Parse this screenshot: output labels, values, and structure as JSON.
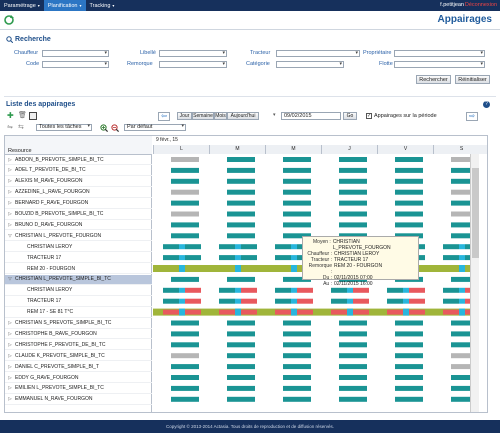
{
  "topbar": {
    "menus": [
      {
        "label": "Paramétrage",
        "active": false
      },
      {
        "label": "Planification",
        "active": true
      },
      {
        "label": "Tracking",
        "active": false
      }
    ],
    "user": "f.petitjean",
    "logout": "Déconnexion"
  },
  "page_title": "Appairages",
  "search": {
    "title": "Recherche",
    "fields": [
      {
        "label": "Chauffeur"
      },
      {
        "label": "Libellé"
      },
      {
        "label": "Tracteur"
      },
      {
        "label": "Propriétaire"
      },
      {
        "label": "Code"
      },
      {
        "label": "Remorque"
      },
      {
        "label": "Catégorie"
      },
      {
        "label": "Flotte"
      }
    ],
    "search_button": "Rechercher",
    "reset_button": "Réinitialiser"
  },
  "list": {
    "title": "Liste des appairages",
    "nav": {
      "jour": "Jour",
      "semaine": "Semaine",
      "mois": "Mois",
      "aujourdhui": "Aujourd'hui"
    },
    "date": "09/02/2015",
    "go": "Go",
    "period_checkbox": "Appairages sur la période",
    "filter_select": "Toutes les tâches",
    "order_select": "Par défaut",
    "resource_header": "Resource",
    "week_label": "9 févr., 15",
    "days": [
      "L",
      "M",
      "M",
      "J",
      "V",
      "S"
    ]
  },
  "resources": [
    {
      "label": "ABDON_B_PREVOTE_SIMPLE_BI_TC",
      "level": 0,
      "expanded": false
    },
    {
      "label": "ADEL T_PREVOTE_DE_BI_TC",
      "level": 0,
      "expanded": false
    },
    {
      "label": "ALEXIS M_RAVE_FOURGON",
      "level": 0,
      "expanded": false
    },
    {
      "label": "AZZEDINE_L_RAVE_FOURGON",
      "level": 0,
      "expanded": false
    },
    {
      "label": "BERNARD F_RAVE_FOURGON",
      "level": 0,
      "expanded": false
    },
    {
      "label": "BOUZID B_PREVOTE_SIMPLE_BI_TC",
      "level": 0,
      "expanded": false
    },
    {
      "label": "BRUNO D_RAVE_FOURGON",
      "level": 0,
      "expanded": false
    },
    {
      "label": "CHRISTIAN L_PREVOTE_FOURGON",
      "level": 0,
      "expanded": true
    },
    {
      "label": "CHRISTIAN LEROY",
      "level": 1
    },
    {
      "label": "TRACTEUR 17",
      "level": 1
    },
    {
      "label": "REM 20 - FOURGON",
      "level": 1
    },
    {
      "label": "CHRISTIAN L_PREVOTE_SIMPLE_BI_TC",
      "level": 0,
      "expanded": true,
      "selected": true
    },
    {
      "label": "CHRISTIAN LEROY",
      "level": 1
    },
    {
      "label": "TRACTEUR 17",
      "level": 1
    },
    {
      "label": "REM 17 - SE 81 T°C",
      "level": 1
    },
    {
      "label": "CHRISTIAN S_PREVOTE_SIMPLE_BI_TC",
      "level": 0,
      "expanded": false
    },
    {
      "label": "CHRISTOPHE B_RAVE_FOURGON",
      "level": 0,
      "expanded": false
    },
    {
      "label": "CHRISTOPHE F_PREVOTE_DE_BI_TC",
      "level": 0,
      "expanded": false
    },
    {
      "label": "CLAUDE K_PREVOTE_SIMPLE_BI_TC",
      "level": 0,
      "expanded": false
    },
    {
      "label": "DANIEL C_PREVOTE_SIMPLE_BI_T",
      "level": 0,
      "expanded": false
    },
    {
      "label": "EDDY G_RAVE_FOURGON",
      "level": 0,
      "expanded": false
    },
    {
      "label": "EMILIEN L_PREVOTE_SIMPLE_BI_TC",
      "level": 0,
      "expanded": false
    },
    {
      "label": "EMMANUEL N_RAVE_FOURGON",
      "level": 0,
      "expanded": false
    }
  ],
  "tooltip": {
    "rows": [
      {
        "k": "Moyen :",
        "v": "CHRISTIAN L_PREVOTE_FOURGON"
      },
      {
        "k": "Chauffeur :",
        "v": "CHRISTIAN LEROY"
      },
      {
        "k": "Tracteur :",
        "v": "TRACTEUR 17"
      },
      {
        "k": "Remorque :",
        "v": "REM 20 - FOURGON"
      },
      {
        "k": "Du :",
        "v": "02/11/2015 07:00"
      },
      {
        "k": "Au :",
        "v": "02/11/2015 16:00"
      }
    ]
  },
  "colors": {
    "teal": "#1a9494",
    "grey": "#b5b5b5",
    "green": "#a0b53a",
    "cyan": "#28b6dd",
    "red": "#e8595e",
    "navy": "#16305c"
  },
  "footer": "Copyright © 2013-2014 Actasia. Tous droits de reproduction et de diffusion réservés."
}
